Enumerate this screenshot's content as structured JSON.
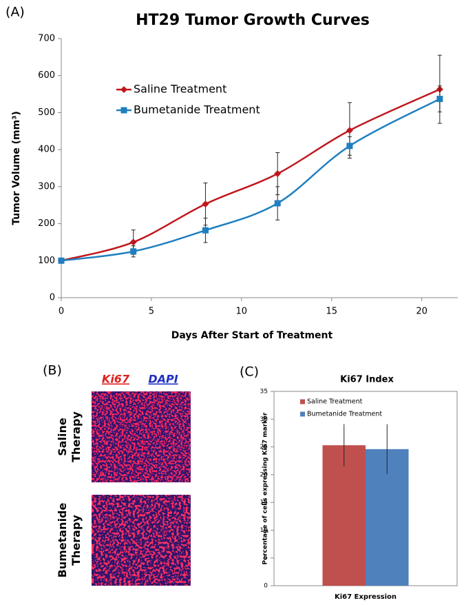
{
  "chart_data": [
    {
      "type": "line",
      "panel_label": "(A)",
      "title": "HT29 Tumor Growth Curves",
      "x_label": "Days After Start of Treatment",
      "y_label": "Tumor Volume (mm³)",
      "x": [
        0,
        4,
        8,
        12,
        16,
        21
      ],
      "series": [
        {
          "name": "Saline Treatment",
          "color": "#c0171d",
          "marker": "diamond",
          "values": [
            100,
            150,
            253,
            335,
            452,
            563
          ],
          "errors": [
            0,
            33,
            57,
            57,
            75,
            92
          ]
        },
        {
          "name": "Bumetanide Treatment",
          "color": "#1f7fc0",
          "marker": "square",
          "values": [
            100,
            125,
            182,
            255,
            410,
            537
          ],
          "errors": [
            0,
            15,
            33,
            45,
            25,
            35
          ]
        }
      ],
      "xlim": [
        0,
        22
      ],
      "xticks": [
        0,
        5,
        10,
        15,
        20
      ],
      "ylim": [
        0,
        700
      ],
      "yticks": [
        0,
        100,
        200,
        300,
        400,
        500,
        600,
        700
      ],
      "legend": "upper left",
      "grid": false
    },
    {
      "type": "bar",
      "panel_label": "(C)",
      "title": "Ki67 Index",
      "y_label": "Percentage of cells expressing Ki67 marker",
      "categories": [
        "Ki67 Expression"
      ],
      "series": [
        {
          "name": "Saline Treatment",
          "color": "#c0504d",
          "values": [
            25.3
          ],
          "errors": [
            3.8
          ]
        },
        {
          "name": "Bumetanide Treatment",
          "color": "#4f81bd",
          "values": [
            24.6
          ],
          "errors": [
            4.5
          ]
        }
      ],
      "ylim": [
        0,
        35
      ],
      "yticks": [
        0,
        5,
        10,
        15,
        20,
        25,
        30,
        35
      ],
      "legend": "upper left",
      "grid": false
    }
  ],
  "image_panel": {
    "panel_label": "(B)",
    "stains": [
      "Ki67",
      "DAPI"
    ],
    "rows": [
      "Saline Therapy",
      "Bumetanide Therapy"
    ]
  }
}
